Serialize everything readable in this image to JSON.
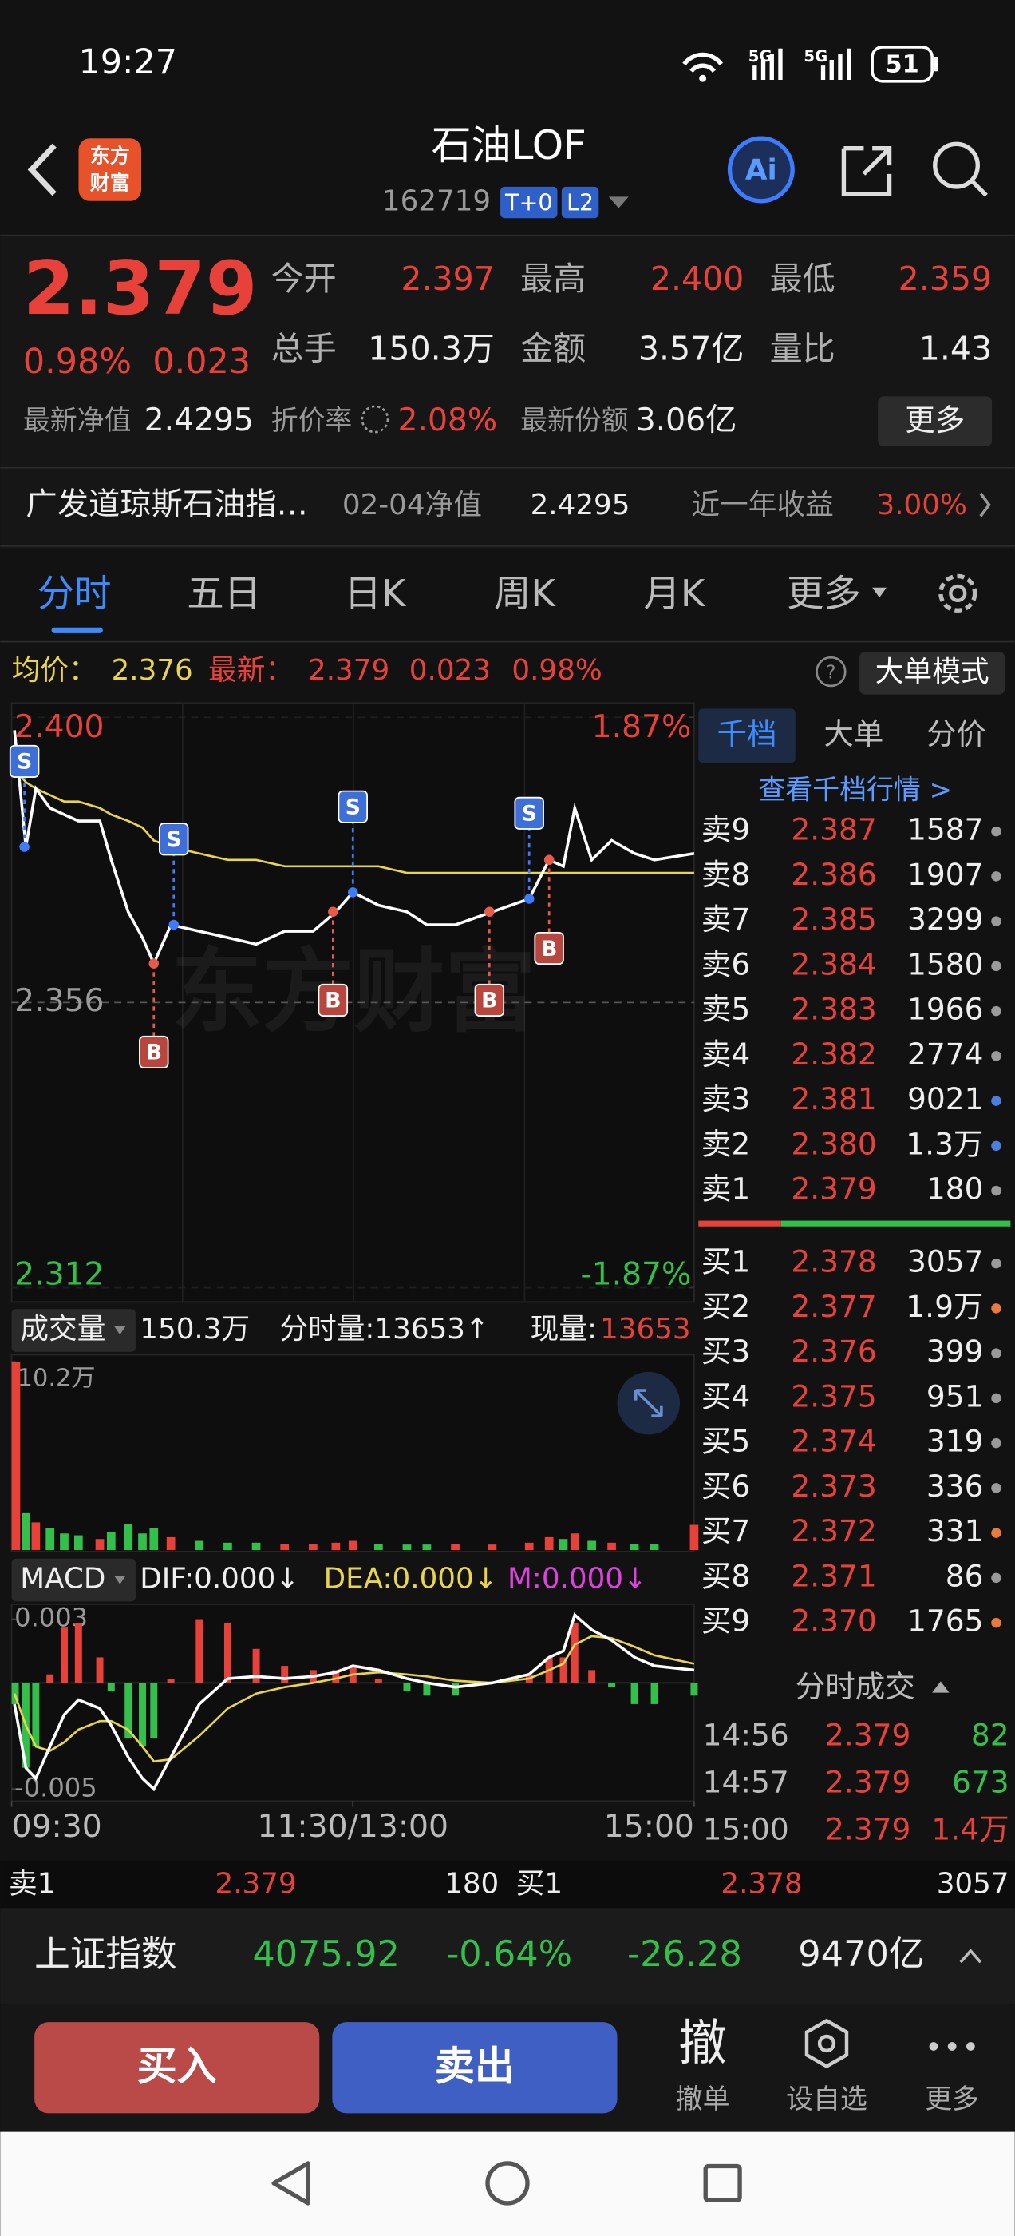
{
  "status_bar": {
    "time": "19:27",
    "battery": "51"
  },
  "header": {
    "logo": [
      "东方",
      "财富"
    ],
    "title": "石油LOF",
    "code": "162719",
    "badges": [
      "T+0",
      "L2"
    ],
    "ai": "Ai"
  },
  "quote": {
    "price": "2.379",
    "change_pct": "0.98%",
    "change": "0.023",
    "stats": [
      {
        "label": "今开",
        "value": "2.397"
      },
      {
        "label": "最高",
        "value": "2.400"
      },
      {
        "label": "最低",
        "value": "2.359"
      },
      {
        "label": "总手",
        "value": "150.3万"
      },
      {
        "label": "金额",
        "value": "3.57亿"
      },
      {
        "label": "量比",
        "value": "1.43"
      }
    ],
    "nav_label": "最新净值",
    "nav": "2.4295",
    "discount_label": "折价率",
    "discount": "2.08%",
    "shares_label": "最新份额",
    "shares": "3.06亿",
    "more": "更多"
  },
  "fund": {
    "name": "广发道琼斯石油指…",
    "nav_date": "02-04净值",
    "nav": "2.4295",
    "return_label": "近一年收益",
    "return": "3.00%"
  },
  "tabs": [
    "分时",
    "五日",
    "日K",
    "周K",
    "月K",
    "更多"
  ],
  "info": {
    "avg_label": "均价：",
    "avg": "2.376",
    "last_label": "最新：",
    "last": "2.379",
    "change": "0.023",
    "change_pct": "0.98%",
    "mode": "大单模式"
  },
  "watermark": "东方财富",
  "volume_header": {
    "label": "成交量",
    "total": "150.3万",
    "minute_label": "分时量:13653↑",
    "current_label": "现量:",
    "current": "13653"
  },
  "macd_header": {
    "label": "MACD",
    "dif": "DIF:0.000↓",
    "dea": "DEA:0.000↓",
    "m": "M:0.000↓"
  },
  "chart_data": [
    {
      "type": "line",
      "x": [
        1,
        5,
        8.5,
        13.5,
        18.5,
        23.5,
        31,
        35,
        41,
        46,
        50,
        56,
        66,
        76,
        86,
        96,
        106,
        114,
        120,
        129,
        139,
        146,
        156,
        169,
        182,
        189,
        194,
        198,
        204,
        211,
        219,
        226,
        240
      ],
      "xlim": [
        0,
        240
      ],
      "xticks": [
        {
          "value": 0,
          "label": "09:30"
        },
        {
          "value": 120,
          "label": "11:30/13:00"
        },
        {
          "value": 240,
          "label": "15:00"
        }
      ],
      "ylim": [
        2.312,
        2.4
      ],
      "yticks": [
        {
          "value": 2.4,
          "label": "2.400"
        },
        2.356,
        2.312
      ],
      "y2lim": [
        -1.87,
        1.87
      ],
      "y2ticks": [
        {
          "value": 1.87,
          "label": "1.87%"
        },
        {
          "value": -1.87,
          "label": "-1.87%"
        }
      ],
      "series": [
        {
          "color": "#ffffff",
          "values": [
            2.398,
            2.38,
            2.389,
            2.386,
            2.385,
            2.384,
            2.384,
            2.378,
            2.37,
            2.366,
            2.362,
            2.368,
            2.367,
            2.366,
            2.365,
            2.367,
            2.367,
            2.37,
            2.373,
            2.371,
            2.37,
            2.368,
            2.368,
            2.37,
            2.372,
            2.378,
            2.377,
            2.386,
            2.378,
            2.381,
            2.379,
            2.378,
            2.379
          ]
        },
        {
          "color": "#e8d44d",
          "values": [
            2.392,
            2.39,
            2.389,
            2.388,
            2.387,
            2.387,
            2.386,
            2.385,
            2.384,
            2.383,
            2.381,
            2.38,
            2.379,
            2.378,
            2.378,
            2.377,
            2.377,
            2.377,
            2.377,
            2.377,
            2.376,
            2.376,
            2.376,
            2.376,
            2.376,
            2.376,
            2.376,
            2.376,
            2.376,
            2.376,
            2.376,
            2.376,
            2.376
          ]
        }
      ],
      "signals": [
        {
          "label": "S",
          "x": 4.5,
          "price": 2.38
        },
        {
          "label": "B",
          "x": 50,
          "price": 2.362
        },
        {
          "label": "S",
          "x": 57,
          "price": 2.368
        },
        {
          "label": "B",
          "x": 113,
          "price": 2.37
        },
        {
          "label": "S",
          "x": 120,
          "price": 2.373
        },
        {
          "label": "B",
          "x": 168,
          "price": 2.37
        },
        {
          "label": "S",
          "x": 182,
          "price": 2.372
        },
        {
          "label": "B",
          "x": 189,
          "price": 2.378
        }
      ],
      "colors": {
        "up": "#e8413a",
        "flat": "#9a9a9a",
        "down": "#33c04a"
      }
    },
    {
      "type": "bar",
      "x": [
        1,
        5,
        8.5,
        13.5,
        18.5,
        23.5,
        31,
        35,
        41,
        46,
        50,
        56,
        66,
        76,
        86,
        96,
        106,
        114,
        120,
        129,
        139,
        146,
        156,
        169,
        182,
        189,
        194,
        198,
        204,
        211,
        219,
        226,
        240
      ],
      "xlim": [
        0,
        240
      ],
      "ylim": [
        0,
        102000
      ],
      "yticks": [
        {
          "value": 102000,
          "label": "10.2万"
        }
      ],
      "values": [
        102000,
        20000,
        15000,
        12000,
        9000,
        8000,
        6000,
        10000,
        14000,
        9000,
        12000,
        7000,
        5000,
        4000,
        4000,
        3500,
        3500,
        4000,
        5000,
        3500,
        3000,
        3000,
        3500,
        3000,
        4000,
        7000,
        6000,
        9000,
        5000,
        4000,
        3500,
        3500,
        13653
      ],
      "colors": {
        "up": "#e8413a",
        "down": "#33c04a"
      }
    },
    {
      "type": "macd",
      "x": [
        1,
        5,
        8.5,
        13.5,
        18.5,
        23.5,
        31,
        35,
        41,
        46,
        50,
        56,
        66,
        76,
        86,
        96,
        106,
        114,
        120,
        129,
        139,
        146,
        156,
        169,
        182,
        189,
        194,
        198,
        204,
        211,
        219,
        226,
        240
      ],
      "xlim": [
        0,
        240
      ],
      "ylim": [
        -0.0055,
        0.0035
      ],
      "yticks": [
        0.003,
        -0.005
      ],
      "series": [
        {
          "color": "#ffffff",
          "values": [
            -0.001,
            -0.004,
            -0.0045,
            -0.003,
            -0.0015,
            -0.0008,
            -0.0012,
            -0.002,
            -0.0035,
            -0.0045,
            -0.005,
            -0.0035,
            -0.001,
            0.0002,
            0.0003,
            0.0002,
            0.0003,
            0.0005,
            0.0008,
            0.0006,
            0.0002,
            0,
            -0.0002,
            0,
            0.0004,
            0.0012,
            0.0015,
            0.0032,
            0.0025,
            0.002,
            0.0012,
            0.0008,
            0.0006
          ]
        },
        {
          "color": "#e8d44d",
          "values": [
            -0.0005,
            -0.002,
            -0.003,
            -0.0032,
            -0.0028,
            -0.0022,
            -0.0018,
            -0.0018,
            -0.0022,
            -0.003,
            -0.0037,
            -0.0036,
            -0.0025,
            -0.0012,
            -0.0005,
            -0.0002,
            0,
            0.0002,
            0.0004,
            0.0005,
            0.0004,
            0.0003,
            0.0001,
            0,
            0.0002,
            0.0006,
            0.0009,
            0.0018,
            0.0022,
            0.0021,
            0.0017,
            0.0013,
            0.0009
          ]
        }
      ],
      "bars": {
        "values": [
          -0.001,
          -0.004,
          -0.003,
          0.0004,
          0.0026,
          0.0028,
          0.0012,
          -0.0004,
          -0.0026,
          -0.003,
          -0.0026,
          0.0002,
          0.003,
          0.0028,
          0.0016,
          0.0008,
          0.0006,
          0.0006,
          0.0008,
          0.0002,
          -0.0004,
          -0.0006,
          -0.0006,
          0,
          0.0004,
          0.0012,
          0.0012,
          0.0028,
          0.0006,
          -0.0002,
          -0.001,
          -0.001,
          -0.0006
        ],
        "colors": {
          "up": "#e8413a",
          "down": "#33c04a"
        }
      }
    }
  ],
  "order_book": {
    "tabs": [
      "千档",
      "大单",
      "分价"
    ],
    "link": "查看千档行情 >",
    "asks": [
      {
        "label": "卖9",
        "price": "2.387",
        "volume": "1587",
        "dot": "#9a9a9a"
      },
      {
        "label": "卖8",
        "price": "2.386",
        "volume": "1907",
        "dot": "#9a9a9a"
      },
      {
        "label": "卖7",
        "price": "2.385",
        "volume": "3299",
        "dot": "#9a9a9a"
      },
      {
        "label": "卖6",
        "price": "2.384",
        "volume": "1580",
        "dot": "#9a9a9a"
      },
      {
        "label": "卖5",
        "price": "2.383",
        "volume": "1966",
        "dot": "#9a9a9a"
      },
      {
        "label": "卖4",
        "price": "2.382",
        "volume": "2774",
        "dot": "#9a9a9a"
      },
      {
        "label": "卖3",
        "price": "2.381",
        "volume": "9021",
        "dot": "#4a7fe0"
      },
      {
        "label": "卖2",
        "price": "2.380",
        "volume": "1.3万",
        "dot": "#4a7fe0"
      },
      {
        "label": "卖1",
        "price": "2.379",
        "volume": "180",
        "dot": "#9a9a9a"
      }
    ],
    "bids": [
      {
        "label": "买1",
        "price": "2.378",
        "volume": "3057",
        "dot": "#9a9a9a"
      },
      {
        "label": "买2",
        "price": "2.377",
        "volume": "1.9万",
        "dot": "#e87a3a"
      },
      {
        "label": "买3",
        "price": "2.376",
        "volume": "399",
        "dot": "#9a9a9a"
      },
      {
        "label": "买4",
        "price": "2.375",
        "volume": "951",
        "dot": "#9a9a9a"
      },
      {
        "label": "买5",
        "price": "2.374",
        "volume": "319",
        "dot": "#9a9a9a"
      },
      {
        "label": "买6",
        "price": "2.373",
        "volume": "336",
        "dot": "#9a9a9a"
      },
      {
        "label": "买7",
        "price": "2.372",
        "volume": "331",
        "dot": "#e87a3a"
      },
      {
        "label": "买8",
        "price": "2.371",
        "volume": "86",
        "dot": "#9a9a9a"
      },
      {
        "label": "买9",
        "price": "2.370",
        "volume": "1765",
        "dot": "#e87a3a"
      }
    ]
  },
  "trades": {
    "title": "分时成交",
    "rows": [
      {
        "time": "14:56",
        "price": "2.379",
        "volume": "82",
        "color": "#33c04a"
      },
      {
        "time": "14:57",
        "price": "2.379",
        "volume": "673",
        "color": "#33c04a"
      },
      {
        "time": "15:00",
        "price": "2.379",
        "volume": "1.4万",
        "color": "#e8413a"
      }
    ]
  },
  "level1": {
    "ask_label": "卖1",
    "ask_price": "2.379",
    "ask_volume": "180",
    "bid_label": "买1",
    "bid_price": "2.378",
    "bid_volume": "3057"
  },
  "index": {
    "name": "上证指数",
    "value": "4075.92",
    "change_pct": "-0.64%",
    "change": "-26.28",
    "turnover": "9470亿"
  },
  "actions": {
    "buy": "买入",
    "sell": "卖出",
    "cancel_icon": "撤",
    "cancel": "撤单",
    "watch": "设自选",
    "more": "更多"
  }
}
